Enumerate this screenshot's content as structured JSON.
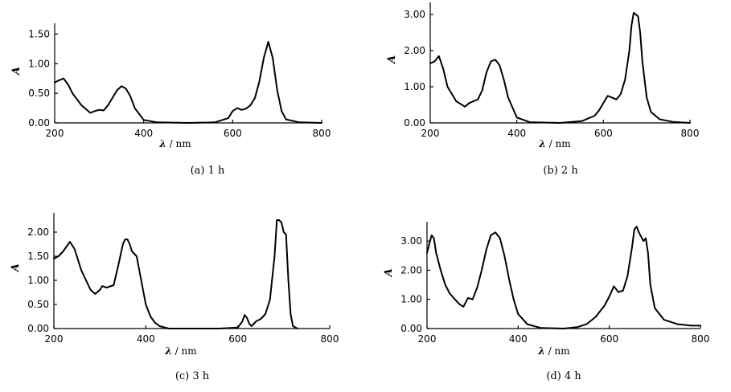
{
  "chart_data": [
    {
      "type": "line",
      "caption": "(a)  1 h",
      "xlabel_symbol": "λ",
      "xlabel_unit": "/ nm",
      "ylabel": "A",
      "x_ticks": [
        "200",
        "400",
        "600",
        "800"
      ],
      "y_ticks": [
        "0.00",
        "0.50",
        "1.00",
        "1.50"
      ],
      "xlim": [
        200,
        800
      ],
      "ylim": [
        0,
        1.6
      ],
      "x": [
        200,
        210,
        220,
        230,
        240,
        260,
        280,
        290,
        300,
        310,
        320,
        340,
        350,
        360,
        370,
        380,
        400,
        430,
        500,
        560,
        590,
        600,
        610,
        620,
        630,
        640,
        650,
        660,
        670,
        680,
        690,
        700,
        710,
        720,
        750,
        800
      ],
      "y": [
        0.68,
        0.72,
        0.75,
        0.65,
        0.5,
        0.3,
        0.17,
        0.2,
        0.22,
        0.21,
        0.3,
        0.55,
        0.62,
        0.58,
        0.45,
        0.25,
        0.05,
        0.01,
        0.0,
        0.01,
        0.08,
        0.2,
        0.25,
        0.22,
        0.24,
        0.3,
        0.42,
        0.7,
        1.1,
        1.37,
        1.1,
        0.55,
        0.2,
        0.06,
        0.01,
        0.0
      ]
    },
    {
      "type": "line",
      "caption": "(b)  2 h",
      "xlabel_symbol": "λ",
      "xlabel_unit": "/ nm",
      "ylabel": "A",
      "x_ticks": [
        "200",
        "400",
        "600",
        "800"
      ],
      "y_ticks": [
        "0.00",
        "1.00",
        "2.00",
        "3.00"
      ],
      "xlim": [
        200,
        800
      ],
      "ylim": [
        0,
        3.2
      ],
      "x": [
        200,
        210,
        220,
        230,
        240,
        260,
        280,
        290,
        300,
        310,
        320,
        330,
        340,
        350,
        360,
        370,
        380,
        400,
        430,
        500,
        550,
        580,
        590,
        600,
        610,
        620,
        630,
        640,
        650,
        660,
        665,
        670,
        680,
        685,
        690,
        700,
        710,
        730,
        760,
        800
      ],
      "y": [
        1.65,
        1.7,
        1.85,
        1.5,
        1.0,
        0.6,
        0.45,
        0.55,
        0.6,
        0.65,
        0.9,
        1.4,
        1.7,
        1.75,
        1.6,
        1.2,
        0.7,
        0.15,
        0.02,
        0.0,
        0.05,
        0.2,
        0.35,
        0.55,
        0.75,
        0.7,
        0.65,
        0.8,
        1.2,
        2.0,
        2.7,
        3.05,
        2.95,
        2.5,
        1.7,
        0.7,
        0.3,
        0.1,
        0.03,
        0.0
      ]
    },
    {
      "type": "line",
      "caption": "(c)  3 h",
      "xlabel_symbol": "λ",
      "xlabel_unit": "/ nm",
      "ylabel": "A",
      "x_ticks": [
        "200",
        "400",
        "600",
        "800"
      ],
      "y_ticks": [
        "0.00",
        "0.50",
        "1.00",
        "1.50",
        "2.00"
      ],
      "xlim": [
        200,
        800
      ],
      "ylim": [
        0,
        2.3
      ],
      "x": [
        200,
        210,
        220,
        235,
        245,
        260,
        280,
        290,
        300,
        305,
        315,
        330,
        340,
        350,
        355,
        360,
        365,
        370,
        380,
        390,
        400,
        410,
        420,
        430,
        450,
        500,
        560,
        600,
        610,
        615,
        620,
        625,
        630,
        640,
        650,
        660,
        670,
        680,
        685,
        690,
        695,
        700,
        705,
        710,
        715,
        720,
        730
      ],
      "y": [
        1.45,
        1.5,
        1.6,
        1.8,
        1.65,
        1.2,
        0.8,
        0.72,
        0.8,
        0.88,
        0.85,
        0.9,
        1.3,
        1.75,
        1.85,
        1.85,
        1.75,
        1.6,
        1.5,
        1.0,
        0.5,
        0.25,
        0.12,
        0.05,
        0.0,
        0.0,
        0.0,
        0.02,
        0.15,
        0.28,
        0.22,
        0.1,
        0.05,
        0.15,
        0.2,
        0.3,
        0.6,
        1.5,
        2.25,
        2.25,
        2.2,
        2.0,
        1.95,
        1.0,
        0.3,
        0.05,
        0.0
      ]
    },
    {
      "type": "line",
      "caption": "(d)  4 h",
      "xlabel_symbol": "λ",
      "xlabel_unit": "/ nm",
      "ylabel": "A",
      "x_ticks": [
        "200",
        "400",
        "600",
        "800"
      ],
      "y_ticks": [
        "0.00",
        "1.00",
        "2.00",
        "3.00"
      ],
      "xlim": [
        200,
        800
      ],
      "ylim": [
        0,
        3.5
      ],
      "x": [
        200,
        205,
        210,
        215,
        220,
        230,
        240,
        250,
        270,
        280,
        290,
        300,
        310,
        320,
        330,
        340,
        350,
        360,
        370,
        380,
        390,
        400,
        420,
        450,
        500,
        530,
        550,
        570,
        590,
        600,
        610,
        620,
        630,
        640,
        650,
        655,
        660,
        665,
        670,
        675,
        680,
        685,
        690,
        700,
        720,
        750,
        780,
        800
      ],
      "y": [
        2.6,
        2.9,
        3.2,
        3.1,
        2.6,
        2.0,
        1.5,
        1.2,
        0.85,
        0.75,
        1.05,
        1.0,
        1.4,
        2.0,
        2.7,
        3.2,
        3.3,
        3.1,
        2.5,
        1.7,
        1.0,
        0.5,
        0.15,
        0.02,
        0.0,
        0.05,
        0.15,
        0.4,
        0.8,
        1.1,
        1.45,
        1.25,
        1.3,
        1.8,
        2.8,
        3.4,
        3.5,
        3.3,
        3.15,
        3.0,
        3.1,
        2.6,
        1.5,
        0.7,
        0.3,
        0.15,
        0.1,
        0.1
      ]
    }
  ]
}
